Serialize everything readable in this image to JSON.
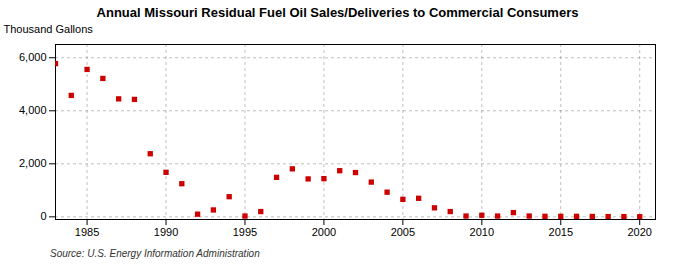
{
  "chart_data": {
    "type": "scatter",
    "title": "Annual Missouri Residual Fuel Oil Sales/Deliveries to Commercial Consumers",
    "ylabel": "Thousand Gallons",
    "source": "Source: U.S. Energy Information Administration",
    "x": [
      1983,
      1984,
      1985,
      1986,
      1987,
      1988,
      1989,
      1990,
      1991,
      1992,
      1993,
      1994,
      1995,
      1996,
      1997,
      1998,
      1999,
      2000,
      2001,
      2002,
      2003,
      2004,
      2005,
      2006,
      2007,
      2008,
      2009,
      2010,
      2011,
      2012,
      2013,
      2014,
      2015,
      2016,
      2017,
      2018,
      2019,
      2020
    ],
    "values": [
      5780,
      4580,
      5560,
      5220,
      4450,
      4430,
      2380,
      1680,
      1250,
      100,
      260,
      760,
      30,
      200,
      1490,
      1810,
      1430,
      1440,
      1740,
      1670,
      1310,
      930,
      660,
      700,
      340,
      200,
      30,
      60,
      30,
      160,
      30,
      20,
      20,
      20,
      15,
      10,
      10,
      5
    ],
    "color": "#cc0000",
    "marker": "square",
    "xlim": [
      1983,
      2021
    ],
    "ylim": [
      -100,
      6500
    ],
    "xticks": [
      1985,
      1990,
      1995,
      2000,
      2005,
      2010,
      2015,
      2020
    ],
    "yticks": [
      0,
      {
        "value": 2000,
        "label": "2,000"
      },
      {
        "value": 4000,
        "label": "4,000"
      },
      {
        "value": 6000,
        "label": "6,000"
      }
    ],
    "grid": true
  }
}
